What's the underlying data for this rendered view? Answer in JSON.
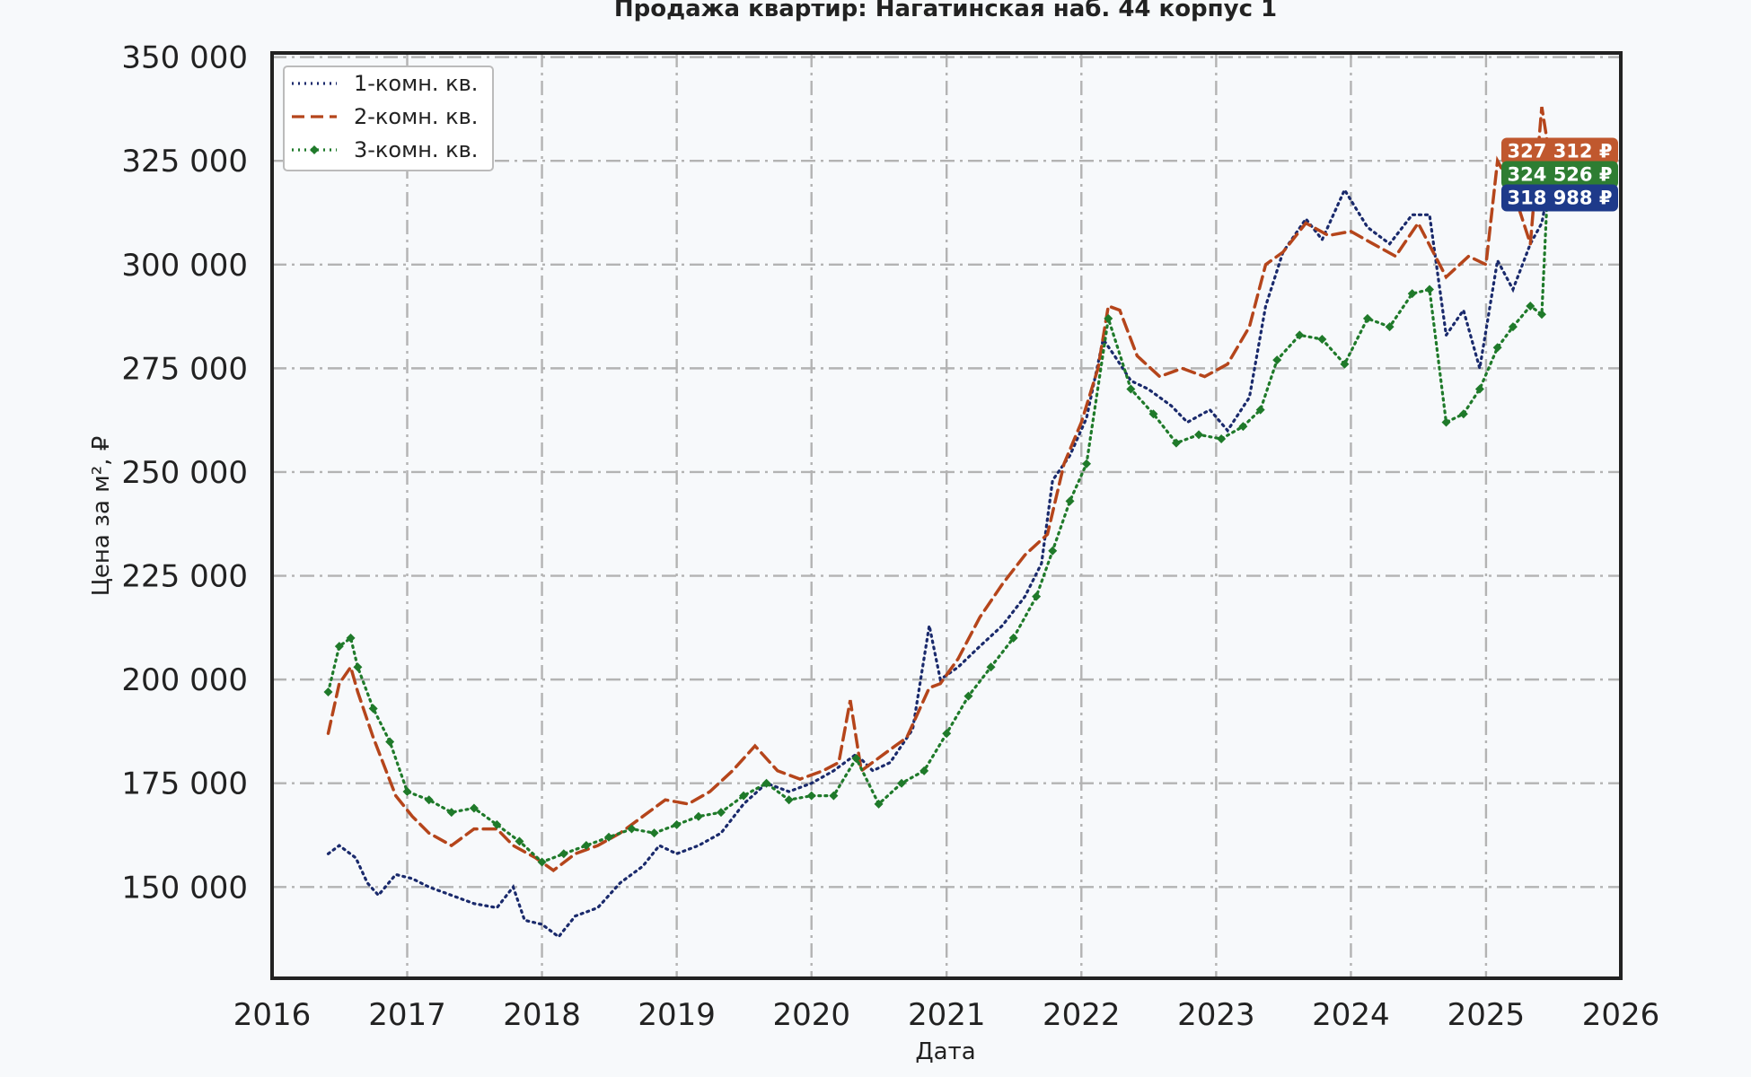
{
  "chart_data": {
    "type": "line",
    "title": "Продажа квартир: Нагатинская наб. 44 корпус 1",
    "xlabel": "Дата",
    "ylabel": "Цена за м², ₽",
    "xlim": [
      "2016-01-01",
      "2026-01-01"
    ],
    "ylim": [
      128000,
      351000
    ],
    "x_ticks": [
      "2016",
      "2017",
      "2018",
      "2019",
      "2020",
      "2021",
      "2022",
      "2023",
      "2024",
      "2025",
      "2026"
    ],
    "y_ticks": [
      150000,
      175000,
      200000,
      225000,
      250000,
      275000,
      300000,
      325000,
      350000
    ],
    "y_tick_labels": [
      "150 000",
      "175 000",
      "200 000",
      "225 000",
      "250 000",
      "275 000",
      "300 000",
      "325 000",
      "350 000"
    ],
    "grid": true,
    "legend_position": "upper-left",
    "series": [
      {
        "name": "1-комн. кв.",
        "color": "#1a2a6c",
        "style": "dotted",
        "marker": "none",
        "points": [
          [
            "2016-06-01",
            158000
          ],
          [
            "2016-07-01",
            160000
          ],
          [
            "2016-08-15",
            157000
          ],
          [
            "2016-09-15",
            151000
          ],
          [
            "2016-10-15",
            148000
          ],
          [
            "2016-12-01",
            153000
          ],
          [
            "2017-01-15",
            152000
          ],
          [
            "2017-03-01",
            150000
          ],
          [
            "2017-05-01",
            148000
          ],
          [
            "2017-07-01",
            146000
          ],
          [
            "2017-09-01",
            145000
          ],
          [
            "2017-10-15",
            150000
          ],
          [
            "2017-11-15",
            142000
          ],
          [
            "2018-01-01",
            141000
          ],
          [
            "2018-02-15",
            138000
          ],
          [
            "2018-04-01",
            143000
          ],
          [
            "2018-06-01",
            145000
          ],
          [
            "2018-08-01",
            151000
          ],
          [
            "2018-10-01",
            155000
          ],
          [
            "2018-11-15",
            160000
          ],
          [
            "2019-01-01",
            158000
          ],
          [
            "2019-03-01",
            160000
          ],
          [
            "2019-05-01",
            163000
          ],
          [
            "2019-07-01",
            170000
          ],
          [
            "2019-09-01",
            175000
          ],
          [
            "2019-11-01",
            173000
          ],
          [
            "2020-01-01",
            175000
          ],
          [
            "2020-03-01",
            178000
          ],
          [
            "2020-05-01",
            182000
          ],
          [
            "2020-06-15",
            178000
          ],
          [
            "2020-08-01",
            180000
          ],
          [
            "2020-10-01",
            188000
          ],
          [
            "2020-11-15",
            213000
          ],
          [
            "2020-12-15",
            200000
          ],
          [
            "2021-02-01",
            203000
          ],
          [
            "2021-04-01",
            208000
          ],
          [
            "2021-06-01",
            213000
          ],
          [
            "2021-08-01",
            220000
          ],
          [
            "2021-09-15",
            228000
          ],
          [
            "2021-10-15",
            248000
          ],
          [
            "2021-12-01",
            254000
          ],
          [
            "2022-01-15",
            263000
          ],
          [
            "2022-03-01",
            282000
          ],
          [
            "2022-04-01",
            278000
          ],
          [
            "2022-05-15",
            272000
          ],
          [
            "2022-07-01",
            270000
          ],
          [
            "2022-09-01",
            266000
          ],
          [
            "2022-10-15",
            262000
          ],
          [
            "2022-12-15",
            265000
          ],
          [
            "2023-02-01",
            260000
          ],
          [
            "2023-04-01",
            268000
          ],
          [
            "2023-05-15",
            290000
          ],
          [
            "2023-07-01",
            303000
          ],
          [
            "2023-09-01",
            311000
          ],
          [
            "2023-10-15",
            306000
          ],
          [
            "2023-12-15",
            318000
          ],
          [
            "2024-02-15",
            309000
          ],
          [
            "2024-04-15",
            305000
          ],
          [
            "2024-06-15",
            312000
          ],
          [
            "2024-08-01",
            312000
          ],
          [
            "2024-09-15",
            283000
          ],
          [
            "2024-11-01",
            289000
          ],
          [
            "2024-12-15",
            275000
          ],
          [
            "2025-02-01",
            301000
          ],
          [
            "2025-03-15",
            294000
          ],
          [
            "2025-05-01",
            305000
          ],
          [
            "2025-06-01",
            310000
          ],
          [
            "2025-06-20",
            318988
          ]
        ]
      },
      {
        "name": "2-комн. кв.",
        "color": "#b5451b",
        "style": "dashed",
        "marker": "none",
        "points": [
          [
            "2016-06-01",
            187000
          ],
          [
            "2016-07-01",
            199000
          ],
          [
            "2016-08-01",
            203000
          ],
          [
            "2016-08-20",
            197000
          ],
          [
            "2016-10-01",
            186000
          ],
          [
            "2016-12-01",
            172000
          ],
          [
            "2017-01-15",
            167000
          ],
          [
            "2017-03-01",
            163000
          ],
          [
            "2017-05-01",
            160000
          ],
          [
            "2017-07-01",
            164000
          ],
          [
            "2017-09-01",
            164000
          ],
          [
            "2017-10-15",
            160000
          ],
          [
            "2017-12-15",
            157000
          ],
          [
            "2018-02-01",
            154000
          ],
          [
            "2018-04-01",
            158000
          ],
          [
            "2018-06-01",
            160000
          ],
          [
            "2018-08-01",
            163000
          ],
          [
            "2018-10-01",
            167000
          ],
          [
            "2018-12-01",
            171000
          ],
          [
            "2019-02-01",
            170000
          ],
          [
            "2019-04-01",
            173000
          ],
          [
            "2019-06-01",
            178000
          ],
          [
            "2019-08-01",
            184000
          ],
          [
            "2019-10-01",
            178000
          ],
          [
            "2019-12-01",
            176000
          ],
          [
            "2020-02-01",
            178000
          ],
          [
            "2020-03-15",
            180000
          ],
          [
            "2020-04-15",
            195000
          ],
          [
            "2020-05-15",
            178000
          ],
          [
            "2020-07-15",
            182000
          ],
          [
            "2020-09-15",
            186000
          ],
          [
            "2020-11-15",
            198000
          ],
          [
            "2020-12-15",
            199000
          ],
          [
            "2021-02-01",
            205000
          ],
          [
            "2021-04-01",
            215000
          ],
          [
            "2021-06-01",
            223000
          ],
          [
            "2021-08-01",
            230000
          ],
          [
            "2021-10-01",
            235000
          ],
          [
            "2021-11-15",
            252000
          ],
          [
            "2022-01-01",
            262000
          ],
          [
            "2022-02-15",
            275000
          ],
          [
            "2022-03-15",
            290000
          ],
          [
            "2022-04-15",
            289000
          ],
          [
            "2022-06-01",
            278000
          ],
          [
            "2022-08-01",
            273000
          ],
          [
            "2022-10-01",
            275000
          ],
          [
            "2022-12-01",
            273000
          ],
          [
            "2023-02-01",
            276000
          ],
          [
            "2023-04-01",
            285000
          ],
          [
            "2023-05-15",
            300000
          ],
          [
            "2023-07-01",
            303000
          ],
          [
            "2023-09-01",
            310000
          ],
          [
            "2023-11-01",
            307000
          ],
          [
            "2024-01-01",
            308000
          ],
          [
            "2024-03-01",
            305000
          ],
          [
            "2024-05-01",
            302000
          ],
          [
            "2024-07-01",
            310000
          ],
          [
            "2024-09-15",
            297000
          ],
          [
            "2024-11-15",
            302000
          ],
          [
            "2025-01-01",
            300000
          ],
          [
            "2025-02-01",
            325000
          ],
          [
            "2025-03-15",
            318000
          ],
          [
            "2025-05-01",
            305000
          ],
          [
            "2025-06-01",
            338000
          ],
          [
            "2025-06-20",
            327312
          ]
        ]
      },
      {
        "name": "3-комн. кв.",
        "color": "#1f7a2a",
        "style": "dotted",
        "marker": "diamond",
        "points": [
          [
            "2016-06-01",
            197000
          ],
          [
            "2016-07-01",
            208000
          ],
          [
            "2016-08-01",
            210000
          ],
          [
            "2016-08-20",
            203000
          ],
          [
            "2016-10-01",
            193000
          ],
          [
            "2016-11-15",
            185000
          ],
          [
            "2017-01-01",
            173000
          ],
          [
            "2017-03-01",
            171000
          ],
          [
            "2017-05-01",
            168000
          ],
          [
            "2017-07-01",
            169000
          ],
          [
            "2017-09-01",
            165000
          ],
          [
            "2017-11-01",
            161000
          ],
          [
            "2018-01-01",
            156000
          ],
          [
            "2018-03-01",
            158000
          ],
          [
            "2018-05-01",
            160000
          ],
          [
            "2018-07-01",
            162000
          ],
          [
            "2018-09-01",
            164000
          ],
          [
            "2018-11-01",
            163000
          ],
          [
            "2019-01-01",
            165000
          ],
          [
            "2019-03-01",
            167000
          ],
          [
            "2019-05-01",
            168000
          ],
          [
            "2019-07-01",
            172000
          ],
          [
            "2019-09-01",
            175000
          ],
          [
            "2019-11-01",
            171000
          ],
          [
            "2020-01-01",
            172000
          ],
          [
            "2020-03-01",
            172000
          ],
          [
            "2020-05-01",
            181000
          ],
          [
            "2020-07-01",
            170000
          ],
          [
            "2020-09-01",
            175000
          ],
          [
            "2020-11-01",
            178000
          ],
          [
            "2021-01-01",
            187000
          ],
          [
            "2021-03-01",
            196000
          ],
          [
            "2021-05-01",
            203000
          ],
          [
            "2021-07-01",
            210000
          ],
          [
            "2021-09-01",
            220000
          ],
          [
            "2021-10-15",
            231000
          ],
          [
            "2021-12-01",
            243000
          ],
          [
            "2022-01-15",
            252000
          ],
          [
            "2022-03-15",
            287000
          ],
          [
            "2022-05-15",
            270000
          ],
          [
            "2022-07-15",
            264000
          ],
          [
            "2022-09-15",
            257000
          ],
          [
            "2022-11-15",
            259000
          ],
          [
            "2023-01-15",
            258000
          ],
          [
            "2023-03-15",
            261000
          ],
          [
            "2023-05-01",
            265000
          ],
          [
            "2023-06-15",
            277000
          ],
          [
            "2023-08-15",
            283000
          ],
          [
            "2023-10-15",
            282000
          ],
          [
            "2023-12-15",
            276000
          ],
          [
            "2024-02-15",
            287000
          ],
          [
            "2024-04-15",
            285000
          ],
          [
            "2024-06-15",
            293000
          ],
          [
            "2024-08-01",
            294000
          ],
          [
            "2024-09-15",
            262000
          ],
          [
            "2024-11-01",
            264000
          ],
          [
            "2024-12-15",
            270000
          ],
          [
            "2025-02-01",
            280000
          ],
          [
            "2025-03-15",
            285000
          ],
          [
            "2025-05-01",
            290000
          ],
          [
            "2025-06-01",
            288000
          ],
          [
            "2025-06-20",
            324526
          ]
        ]
      }
    ],
    "end_badges": [
      {
        "label": "327 312 ₽",
        "value": 327312,
        "color": "#c0582e"
      },
      {
        "label": "324 526 ₽",
        "value": 324526,
        "color": "#2e7d32"
      },
      {
        "label": "318 988 ₽",
        "value": 318988,
        "color": "#1e3a8a"
      }
    ]
  }
}
